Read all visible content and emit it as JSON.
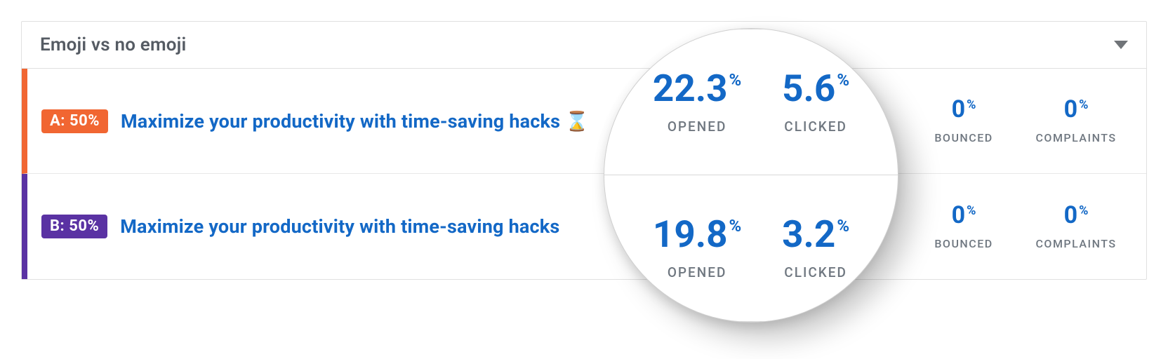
{
  "colors": {
    "accent_a": "#f16632",
    "accent_b": "#5a32a3",
    "link_blue": "#1368c6",
    "text_muted": "#6f7780",
    "title_gray": "#555b63",
    "border": "#e0e0e0"
  },
  "panel": {
    "title": "Emoji vs no emoji"
  },
  "variants": [
    {
      "key": "A",
      "badge": "A: 50%",
      "subject": "Maximize your productivity with time-saving hacks ⌛",
      "stats": {
        "opened": {
          "value": "22.3",
          "unit": "%",
          "label": "OPENED"
        },
        "clicked": {
          "value": "5.6",
          "unit": "%",
          "label": "CLICKED"
        },
        "bounced": {
          "value": "0",
          "unit": "%",
          "label": "BOUNCED"
        },
        "complaints": {
          "value": "0",
          "unit": "%",
          "label": "COMPLAINTS"
        }
      }
    },
    {
      "key": "B",
      "badge": "B: 50%",
      "subject": "Maximize your productivity with time-saving hacks",
      "stats": {
        "opened": {
          "value": "19.8",
          "unit": "%",
          "label": "OPENED"
        },
        "clicked": {
          "value": "3.2",
          "unit": "%",
          "label": "CLICKED"
        },
        "bounced": {
          "value": "0",
          "unit": "%",
          "label": "BOUNCED"
        },
        "complaints": {
          "value": "0",
          "unit": "%",
          "label": "COMPLAINTS"
        }
      }
    }
  ],
  "magnifier": {
    "rows": [
      {
        "opened": {
          "value": "22.3",
          "unit": "%",
          "label": "OPENED"
        },
        "clicked": {
          "value": "5.6",
          "unit": "%",
          "label": "CLICKED"
        }
      },
      {
        "opened": {
          "value": "19.8",
          "unit": "%",
          "label": "OPENED"
        },
        "clicked": {
          "value": "3.2",
          "unit": "%",
          "label": "CLICKED"
        }
      }
    ]
  }
}
